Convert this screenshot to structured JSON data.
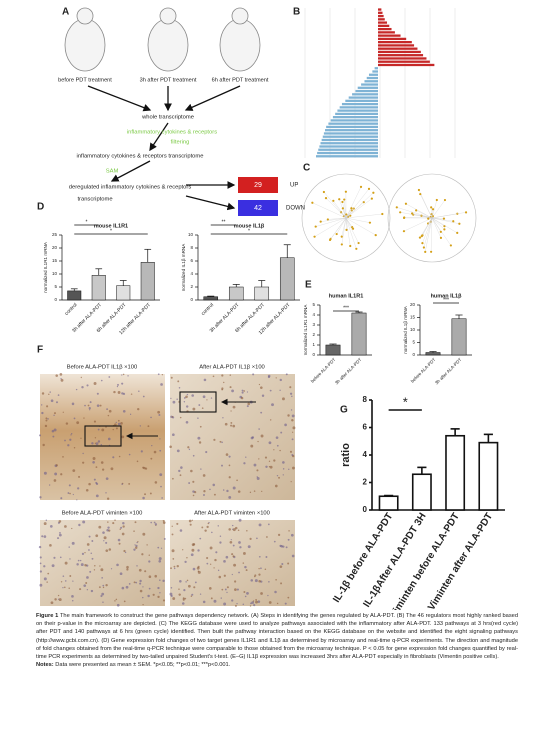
{
  "panel_labels": [
    "A",
    "B",
    "C",
    "D",
    "E",
    "F",
    "G"
  ],
  "flow": {
    "stages": [
      "before PDT treatment",
      "3h after PDT treatment",
      "6h after PDT treatment"
    ],
    "whole": "whole transcriptome",
    "filter_title": "inflammatory cytokines & receptors",
    "filter": "filtering",
    "subset": "inflammatory cytokines & receptors transcriptome",
    "method": "SAM",
    "result": [
      "deregulated inflammatory cytokines & receptors",
      "transcriptome"
    ],
    "up": {
      "value": 29,
      "label": "UP"
    },
    "down": {
      "value": 42,
      "label": "DOWN"
    }
  },
  "histology": [
    "Before ALA-PDT IL1β ×100",
    "After ALA-PDT IL1β ×100",
    "Before ALA-PDT viminten ×100",
    "After ALA-PDT viminten ×100"
  ],
  "chart_data": [
    {
      "type": "hbar",
      "color_up": "#c62828",
      "color_down": "#7fb3d5",
      "values": [
        0.3,
        0.4,
        0.5,
        0.6,
        0.8,
        1,
        1.2,
        1.5,
        2,
        2.5,
        3,
        3.2,
        3.5,
        3.8,
        4,
        4.3,
        4.6,
        5,
        -0.3,
        -0.5,
        -0.8,
        -1,
        -1.2,
        -1.5,
        -1.8,
        -2,
        -2.3,
        -2.6,
        -2.9,
        -3.2,
        -3.4,
        -3.6,
        -3.8,
        -4,
        -4.2,
        -4.4,
        -4.6,
        -4.7,
        -4.8,
        -4.9,
        -5,
        -5.1,
        -5.2,
        -5.3,
        -5.4,
        -5.5
      ]
    },
    {
      "type": "bar",
      "title": "mouse IL1R1",
      "y_label": "normalized IL1R1 mRNA",
      "categories": [
        "control",
        "3h after ALA-PDT",
        "6h after ALA-PDT",
        "12h after ALA-PDT"
      ],
      "values": [
        3.5,
        9.5,
        5.5,
        14.5
      ],
      "errors": [
        0.8,
        2.5,
        2,
        5
      ],
      "colors": [
        "#555",
        "#c8c8c8",
        "#e0e0e0",
        "#b8b8b8"
      ],
      "ylim": [
        0,
        25
      ],
      "yticks": [
        0,
        5,
        10,
        15,
        20,
        25
      ],
      "annotations": [
        "*",
        "*"
      ]
    },
    {
      "type": "bar",
      "title": "mouse IL1β",
      "y_label": "normalized IL1β mRNA",
      "categories": [
        "control",
        "3h after ALA-PDT",
        "6h after ALA-PDT",
        "12h after ALA-PDT"
      ],
      "values": [
        0.5,
        2,
        2,
        6.5
      ],
      "errors": [
        0.1,
        0.4,
        1,
        2
      ],
      "colors": [
        "#555",
        "#c8c8c8",
        "#e0e0e0",
        "#b8b8b8"
      ],
      "ylim": [
        0,
        10
      ],
      "yticks": [
        0,
        2,
        4,
        6,
        8,
        10
      ],
      "annotations": [
        "**",
        "*"
      ]
    },
    {
      "type": "bar",
      "title": "human IL1R1",
      "y_label": "normalized IL1R1 mRNA",
      "categories": [
        "before ALA-PDT",
        "3h after ALA-PDT"
      ],
      "values": [
        1,
        4.2
      ],
      "errors": [
        0.1,
        0.1
      ],
      "colors": [
        "#666",
        "#aaa"
      ],
      "ylim": [
        0,
        5
      ],
      "yticks": [
        0,
        1,
        2,
        3,
        4,
        5
      ],
      "annotations": [
        "***"
      ]
    },
    {
      "type": "bar",
      "title": "human IL1β",
      "y_label": "normalized IL1β mRNA",
      "categories": [
        "before ALA-PDT",
        "3h after ALA-PDT"
      ],
      "values": [
        1,
        14.5
      ],
      "errors": [
        0.4,
        1.5
      ],
      "colors": [
        "#666",
        "#aaa"
      ],
      "ylim": [
        0,
        20
      ],
      "yticks": [
        0,
        5,
        10,
        15,
        20
      ],
      "annotations": [
        "***"
      ]
    },
    {
      "type": "bar",
      "y_label": "ratio",
      "categories": [
        "IL-1β before ALA-PDT",
        "IL-1βAfter ALA-PDT 3H",
        "Viminten before ALA-PDT",
        "Viminten after ALA-PDT"
      ],
      "values": [
        1,
        2.6,
        5.4,
        4.9
      ],
      "errors": [
        0.05,
        0.5,
        0.5,
        0.6
      ],
      "colors": [
        "#fff",
        "#fff",
        "#fff",
        "#fff"
      ],
      "ylim": [
        0,
        8
      ],
      "yticks": [
        0,
        2,
        4,
        6,
        8
      ],
      "annotations": [
        "*"
      ]
    }
  ],
  "caption": {
    "label": "Figure 1",
    "text": "The main framework to construct the gene pathways dependency network. (A) Steps in identifying the genes regulated by ALA-PDT. (B) The 46 regulators most highly ranked based on their p-value in the microarray are depicted. (C) The KEGG database were used to analyze pathways associated with the inflammatory after ALA-PDT. 133 pathways at 3 hrs(red cycle) after PDT and 140 pathways at 6 hrs (green cycle) identified. Then built the pathway interaction based on the KEGG database on the website and identified the eight signaling pathways (http://www.gcbi.com.cn). (D) Gene expression fold changes of two target genes IL1R1 and IL1β as determined by microarray and real-time q-PCR experiments. The direction and magnitude of fold changes obtained from the real-time q-PCR technique were comparable to those obtained from the microarray technique. P < 0.05 for gene expression fold changes quantified by real-time PCR experiments as determined by two-tailed unpaired Student's t-test. (E–G) IL1β expression was increased 3hrs after ALA-PDT especially in fibroblasts (Vimentin positive cells).",
    "notes_label": "Notes:",
    "notes": "Data were presented as mean ± SEM. *p<0.05; **p<0.01; ***p<0.001."
  }
}
